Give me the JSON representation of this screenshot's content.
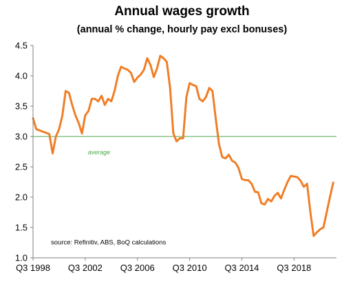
{
  "chart_data": {
    "type": "line",
    "title": "Annual wages growth",
    "subtitle": "(annual % change, hourly pay excl bonuses)",
    "xlabel": "",
    "ylabel": "",
    "ylim": [
      1.0,
      4.5
    ],
    "yticks": [
      "1.0",
      "1.5",
      "2.0",
      "2.5",
      "3.0",
      "3.5",
      "4.0",
      "4.5"
    ],
    "xticks": [
      "Q3 1998",
      "Q3 2002",
      "Q3 2006",
      "Q3 2010",
      "Q3 2014",
      "Q3 2018"
    ],
    "xrange": [
      1998.5,
      2021.75
    ],
    "grid": false,
    "colors": {
      "series": "#f07e26",
      "average": "#4ca64c",
      "axis": "#7f7f7f"
    },
    "average": {
      "value": 3.0,
      "label": "average"
    },
    "source": "source:  Refinitiv, ABS, BoQ calculations",
    "series": [
      {
        "values": [
          [
            1998.5,
            3.3
          ],
          [
            1998.75,
            3.12
          ],
          [
            1999.0,
            3.1
          ],
          [
            1999.25,
            3.08
          ],
          [
            1999.5,
            3.06
          ],
          [
            1999.75,
            3.04
          ],
          [
            2000.0,
            2.72
          ],
          [
            2000.25,
            3.0
          ],
          [
            2000.5,
            3.12
          ],
          [
            2000.75,
            3.35
          ],
          [
            2001.0,
            3.75
          ],
          [
            2001.25,
            3.72
          ],
          [
            2001.5,
            3.52
          ],
          [
            2001.75,
            3.35
          ],
          [
            2002.0,
            3.22
          ],
          [
            2002.25,
            3.05
          ],
          [
            2002.5,
            3.35
          ],
          [
            2002.75,
            3.42
          ],
          [
            2003.0,
            3.62
          ],
          [
            2003.25,
            3.62
          ],
          [
            2003.5,
            3.58
          ],
          [
            2003.75,
            3.67
          ],
          [
            2004.0,
            3.52
          ],
          [
            2004.25,
            3.62
          ],
          [
            2004.5,
            3.58
          ],
          [
            2004.75,
            3.75
          ],
          [
            2005.0,
            4.0
          ],
          [
            2005.25,
            4.15
          ],
          [
            2005.5,
            4.12
          ],
          [
            2005.75,
            4.1
          ],
          [
            2006.0,
            4.05
          ],
          [
            2006.25,
            3.9
          ],
          [
            2006.5,
            3.97
          ],
          [
            2006.75,
            4.02
          ],
          [
            2007.0,
            4.1
          ],
          [
            2007.25,
            4.29
          ],
          [
            2007.5,
            4.18
          ],
          [
            2007.75,
            3.98
          ],
          [
            2008.0,
            4.12
          ],
          [
            2008.25,
            4.33
          ],
          [
            2008.5,
            4.29
          ],
          [
            2008.75,
            4.23
          ],
          [
            2009.0,
            3.8
          ],
          [
            2009.25,
            3.05
          ],
          [
            2009.5,
            2.92
          ],
          [
            2009.75,
            2.97
          ],
          [
            2010.0,
            2.97
          ],
          [
            2010.25,
            3.65
          ],
          [
            2010.5,
            3.88
          ],
          [
            2010.75,
            3.85
          ],
          [
            2011.0,
            3.83
          ],
          [
            2011.25,
            3.62
          ],
          [
            2011.5,
            3.58
          ],
          [
            2011.75,
            3.65
          ],
          [
            2012.0,
            3.8
          ],
          [
            2012.25,
            3.75
          ],
          [
            2012.5,
            3.3
          ],
          [
            2012.75,
            2.87
          ],
          [
            2013.0,
            2.66
          ],
          [
            2013.25,
            2.64
          ],
          [
            2013.5,
            2.7
          ],
          [
            2013.75,
            2.6
          ],
          [
            2014.0,
            2.57
          ],
          [
            2014.25,
            2.48
          ],
          [
            2014.5,
            2.3
          ],
          [
            2014.75,
            2.28
          ],
          [
            2015.0,
            2.28
          ],
          [
            2015.25,
            2.22
          ],
          [
            2015.5,
            2.09
          ],
          [
            2015.75,
            2.08
          ],
          [
            2016.0,
            1.9
          ],
          [
            2016.25,
            1.88
          ],
          [
            2016.5,
            1.97
          ],
          [
            2016.75,
            1.93
          ],
          [
            2017.0,
            2.02
          ],
          [
            2017.25,
            2.07
          ],
          [
            2017.5,
            1.98
          ],
          [
            2017.75,
            2.12
          ],
          [
            2018.0,
            2.25
          ],
          [
            2018.25,
            2.35
          ],
          [
            2018.5,
            2.34
          ],
          [
            2018.75,
            2.33
          ],
          [
            2019.0,
            2.27
          ],
          [
            2019.25,
            2.17
          ],
          [
            2019.5,
            2.22
          ],
          [
            2019.75,
            1.75
          ],
          [
            2020.0,
            1.36
          ],
          [
            2020.25,
            1.42
          ],
          [
            2020.5,
            1.47
          ],
          [
            2020.75,
            1.5
          ],
          [
            2021.0,
            1.75
          ],
          [
            2021.25,
            2.0
          ],
          [
            2021.5,
            2.24
          ]
        ]
      }
    ]
  }
}
